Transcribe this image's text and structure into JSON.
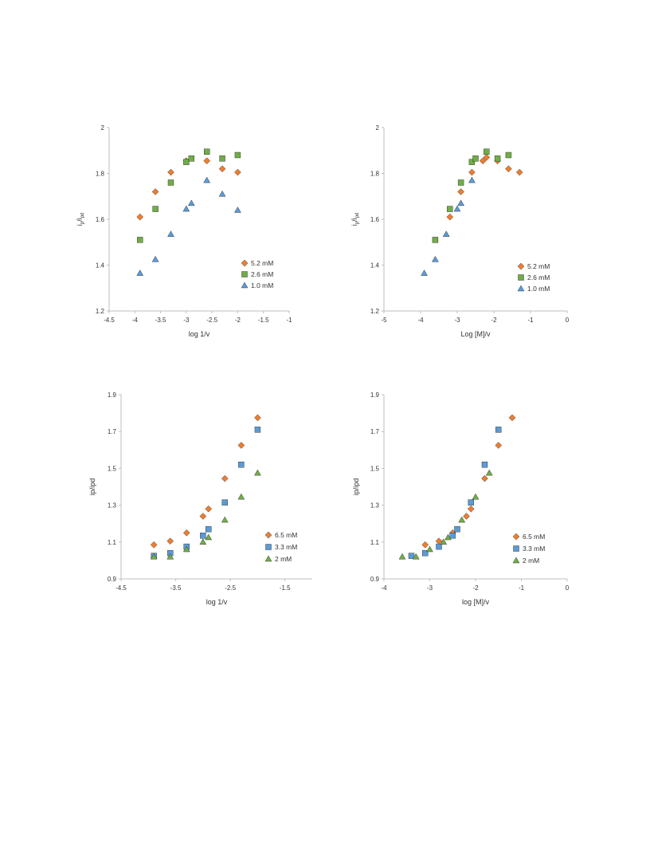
{
  "chart_data": [
    {
      "type": "scatter",
      "xlabel": "log 1/v",
      "ylabel_main": "i",
      "ylabel_sub1": "p",
      "ylabel_mid": "/i",
      "ylabel_sub2": "pd",
      "xlim": [
        -4.5,
        -1
      ],
      "ylim": [
        1.2,
        2
      ],
      "x_ticks": [
        "-4.5",
        "-4",
        "-3.5",
        "-3",
        "-2.5",
        "-2",
        "-1.5",
        "-1"
      ],
      "y_ticks": [
        "1.2",
        "1.4",
        "1.6",
        "1.8",
        "2"
      ],
      "legend_position": "bottom-right",
      "series": [
        {
          "name": "5.2 mM",
          "marker": "diamond",
          "color": "#ED7D31",
          "x": [
            -3.9,
            -3.6,
            -3.3,
            -3.0,
            -2.6,
            -2.3,
            -2.0
          ],
          "y": [
            1.61,
            1.72,
            1.805,
            1.855,
            1.855,
            1.82,
            1.805
          ]
        },
        {
          "name": "2.6 mM",
          "marker": "square",
          "color": "#70AD47",
          "x": [
            -3.9,
            -3.6,
            -3.3,
            -3.0,
            -2.9,
            -2.6,
            -2.3,
            -2.0
          ],
          "y": [
            1.51,
            1.645,
            1.76,
            1.85,
            1.865,
            1.895,
            1.865,
            1.88
          ]
        },
        {
          "name": "1.0 mM",
          "marker": "triangle",
          "color": "#5B9BD5",
          "x": [
            -3.9,
            -3.6,
            -3.3,
            -3.0,
            -2.9,
            -2.6,
            -2.3,
            -2.0
          ],
          "y": [
            1.365,
            1.425,
            1.535,
            1.645,
            1.67,
            1.77,
            1.71,
            1.64
          ]
        }
      ]
    },
    {
      "type": "scatter",
      "xlabel": "Log [M]/v",
      "ylabel_main": "i",
      "ylabel_sub1": "p",
      "ylabel_mid": "/i",
      "ylabel_sub2": "pd",
      "xlim": [
        -5,
        0
      ],
      "ylim": [
        1.2,
        2
      ],
      "x_ticks": [
        "-5",
        "-4",
        "-3",
        "-2",
        "-1",
        "0"
      ],
      "y_ticks": [
        "1.2",
        "1.4",
        "1.6",
        "1.8",
        "2"
      ],
      "legend_position": "bottom-right",
      "series": [
        {
          "name": "5.2 mM",
          "marker": "diamond",
          "color": "#ED7D31",
          "x": [
            -3.2,
            -2.9,
            -2.6,
            -2.3,
            -2.2,
            -1.9,
            -1.6,
            -1.3
          ],
          "y": [
            1.61,
            1.72,
            1.805,
            1.855,
            1.87,
            1.855,
            1.82,
            1.805
          ]
        },
        {
          "name": "2.6 mM",
          "marker": "square",
          "color": "#70AD47",
          "x": [
            -3.6,
            -3.2,
            -2.9,
            -2.6,
            -2.5,
            -2.2,
            -1.9,
            -1.6
          ],
          "y": [
            1.51,
            1.645,
            1.76,
            1.85,
            1.865,
            1.895,
            1.865,
            1.88
          ]
        },
        {
          "name": "1.0 mM",
          "marker": "triangle",
          "color": "#5B9BD5",
          "x": [
            -3.9,
            -3.6,
            -3.3,
            -3.0,
            -2.9,
            -2.6
          ],
          "y": [
            1.365,
            1.425,
            1.535,
            1.645,
            1.67,
            1.77
          ]
        }
      ]
    },
    {
      "type": "scatter",
      "xlabel": "log 1/v",
      "ylabel_main": "ip/ipd",
      "xlim": [
        -4.5,
        -1
      ],
      "ylim": [
        0.9,
        1.9
      ],
      "x_ticks": [
        "-4.5",
        "-3.5",
        "-2.5",
        "-1.5"
      ],
      "x_tick_values": [
        -4.5,
        -3.5,
        -2.5,
        -1.5
      ],
      "y_ticks": [
        "0.9",
        "1.1",
        "1.3",
        "1.5",
        "1.7",
        "1.9"
      ],
      "legend_position": "bottom-right",
      "series": [
        {
          "name": "6.5 mM",
          "marker": "diamond",
          "color": "#ED7D31",
          "x": [
            -3.9,
            -3.6,
            -3.3,
            -3.0,
            -2.9,
            -2.6,
            -2.3,
            -2.0
          ],
          "y": [
            1.085,
            1.105,
            1.15,
            1.24,
            1.28,
            1.445,
            1.625,
            1.775
          ]
        },
        {
          "name": "3.3 mM",
          "marker": "square",
          "color": "#5B9BD5",
          "x": [
            -3.9,
            -3.6,
            -3.3,
            -3.0,
            -2.9,
            -2.6,
            -2.3,
            -2.0
          ],
          "y": [
            1.025,
            1.04,
            1.075,
            1.135,
            1.17,
            1.315,
            1.52,
            1.71
          ]
        },
        {
          "name": "2 mM",
          "marker": "triangle",
          "color": "#70AD47",
          "x": [
            -3.9,
            -3.6,
            -3.3,
            -3.0,
            -2.9,
            -2.6,
            -2.3,
            -2.0
          ],
          "y": [
            1.02,
            1.02,
            1.06,
            1.1,
            1.125,
            1.22,
            1.345,
            1.475
          ]
        }
      ]
    },
    {
      "type": "scatter",
      "xlabel": "log [M]/v",
      "ylabel_main": "ip/ipd",
      "xlim": [
        -4,
        0
      ],
      "ylim": [
        0.9,
        1.9
      ],
      "x_ticks": [
        "-4",
        "-3",
        "-2",
        "-1",
        "0"
      ],
      "y_ticks": [
        "0.9",
        "1.1",
        "1.3",
        "1.5",
        "1.7",
        "1.9"
      ],
      "legend_position": "bottom-right",
      "series": [
        {
          "name": "6.5 mM",
          "marker": "diamond",
          "color": "#ED7D31",
          "x": [
            -3.1,
            -2.8,
            -2.5,
            -2.2,
            -2.1,
            -1.8,
            -1.5,
            -1.2
          ],
          "y": [
            1.085,
            1.105,
            1.15,
            1.24,
            1.28,
            1.445,
            1.625,
            1.775
          ]
        },
        {
          "name": "3.3 mM",
          "marker": "square",
          "color": "#5B9BD5",
          "x": [
            -3.4,
            -3.1,
            -2.8,
            -2.5,
            -2.4,
            -2.1,
            -1.8,
            -1.5
          ],
          "y": [
            1.025,
            1.04,
            1.075,
            1.135,
            1.17,
            1.315,
            1.52,
            1.71
          ]
        },
        {
          "name": "2 mM",
          "marker": "triangle",
          "color": "#70AD47",
          "x": [
            -3.6,
            -3.3,
            -3.0,
            -2.7,
            -2.6,
            -2.3,
            -2.0,
            -1.7
          ],
          "y": [
            1.02,
            1.02,
            1.06,
            1.1,
            1.125,
            1.22,
            1.345,
            1.475
          ]
        }
      ]
    }
  ]
}
